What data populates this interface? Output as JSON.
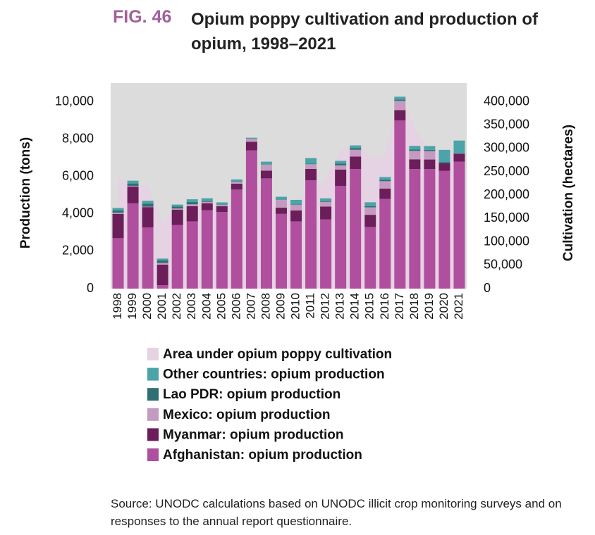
{
  "chart_data": {
    "type": "bar",
    "label": "FIG. 46",
    "title": "Opium poppy cultivation and production of opium, 1998–2021",
    "ylabel": "Production (tons)",
    "y2label": "Cultivation (hectares)",
    "source": "Source: UNODC calculations based on UNODC illicit crop monitoring surveys and on responses to the annual report questionnaire.",
    "categories": [
      "1998",
      "1999",
      "2000",
      "2001",
      "2002",
      "2003",
      "2004",
      "2005",
      "2006",
      "2007",
      "2008",
      "2009",
      "2010",
      "2011",
      "2012",
      "2013",
      "2014",
      "2015",
      "2016",
      "2017",
      "2018",
      "2019",
      "2020",
      "2021"
    ],
    "series": [
      {
        "name": "Afghanistan: opium production",
        "color": "#b04f9e",
        "values": [
          2700,
          4565,
          3276,
          185,
          3400,
          3600,
          4200,
          4100,
          5300,
          7400,
          5900,
          4000,
          3600,
          5800,
          3700,
          5500,
          6400,
          3300,
          4800,
          9000,
          6400,
          6400,
          6300,
          6800
        ]
      },
      {
        "name": "Myanmar: opium production",
        "color": "#6b1e5a",
        "values": [
          1300,
          895,
          1087,
          1097,
          828,
          810,
          370,
          312,
          315,
          460,
          410,
          330,
          580,
          610,
          690,
          870,
          670,
          650,
          550,
          550,
          520,
          510,
          405,
          423
        ]
      },
      {
        "name": "Mexico: opium production",
        "color": "#c59ac0",
        "values": [
          60,
          43,
          21,
          91,
          58,
          101,
          73,
          71,
          108,
          149,
          325,
          425,
          300,
          250,
          250,
          225,
          360,
          400,
          400,
          500,
          450,
          450,
          0,
          0
        ]
      },
      {
        "name": "Lao PDR: opium production",
        "color": "#2e6f72",
        "values": [
          124,
          124,
          167,
          134,
          112,
          120,
          43,
          14,
          20,
          9,
          10,
          11,
          18,
          25,
          41,
          92,
          84,
          70,
          70,
          70,
          70,
          70,
          70,
          0
        ]
      },
      {
        "name": "Other countries: opium production",
        "color": "#4aa4a8",
        "values": [
          130,
          150,
          150,
          100,
          100,
          150,
          150,
          120,
          100,
          60,
          150,
          150,
          250,
          300,
          150,
          150,
          150,
          200,
          150,
          150,
          200,
          200,
          650,
          700
        ]
      },
      {
        "name": "Area under opium poppy cultivation",
        "color": "#e5d2e3",
        "type": "area",
        "axis": "y2",
        "values": [
          238000,
          220000,
          222000,
          142000,
          180000,
          169000,
          196000,
          151000,
          200000,
          235000,
          190000,
          182000,
          190000,
          207000,
          236000,
          296000,
          311000,
          281000,
          284000,
          418000,
          345000,
          292000,
          294000,
          294000
        ]
      }
    ],
    "ylim": [
      0,
      11000
    ],
    "yticks": [
      0,
      {
        "value": 2000,
        "label": "2,000"
      },
      {
        "value": 4000,
        "label": "4,000"
      },
      {
        "value": 6000,
        "label": "6,000"
      },
      {
        "value": 8000,
        "label": "8,000"
      },
      {
        "value": 10000,
        "label": "10,000"
      }
    ],
    "y2lim": [
      0,
      440000
    ],
    "y2ticks": [
      0,
      {
        "value": 50000,
        "label": "50,000"
      },
      {
        "value": 100000,
        "label": "100,000"
      },
      {
        "value": 150000,
        "label": "150,000"
      },
      {
        "value": 200000,
        "label": "200,000"
      },
      {
        "value": 250000,
        "label": "250,000"
      },
      {
        "value": 300000,
        "label": "300,000"
      },
      {
        "value": 350000,
        "label": "350,000"
      },
      {
        "value": 400000,
        "label": "400,000"
      }
    ],
    "plot_background": "#dcdcdc"
  }
}
